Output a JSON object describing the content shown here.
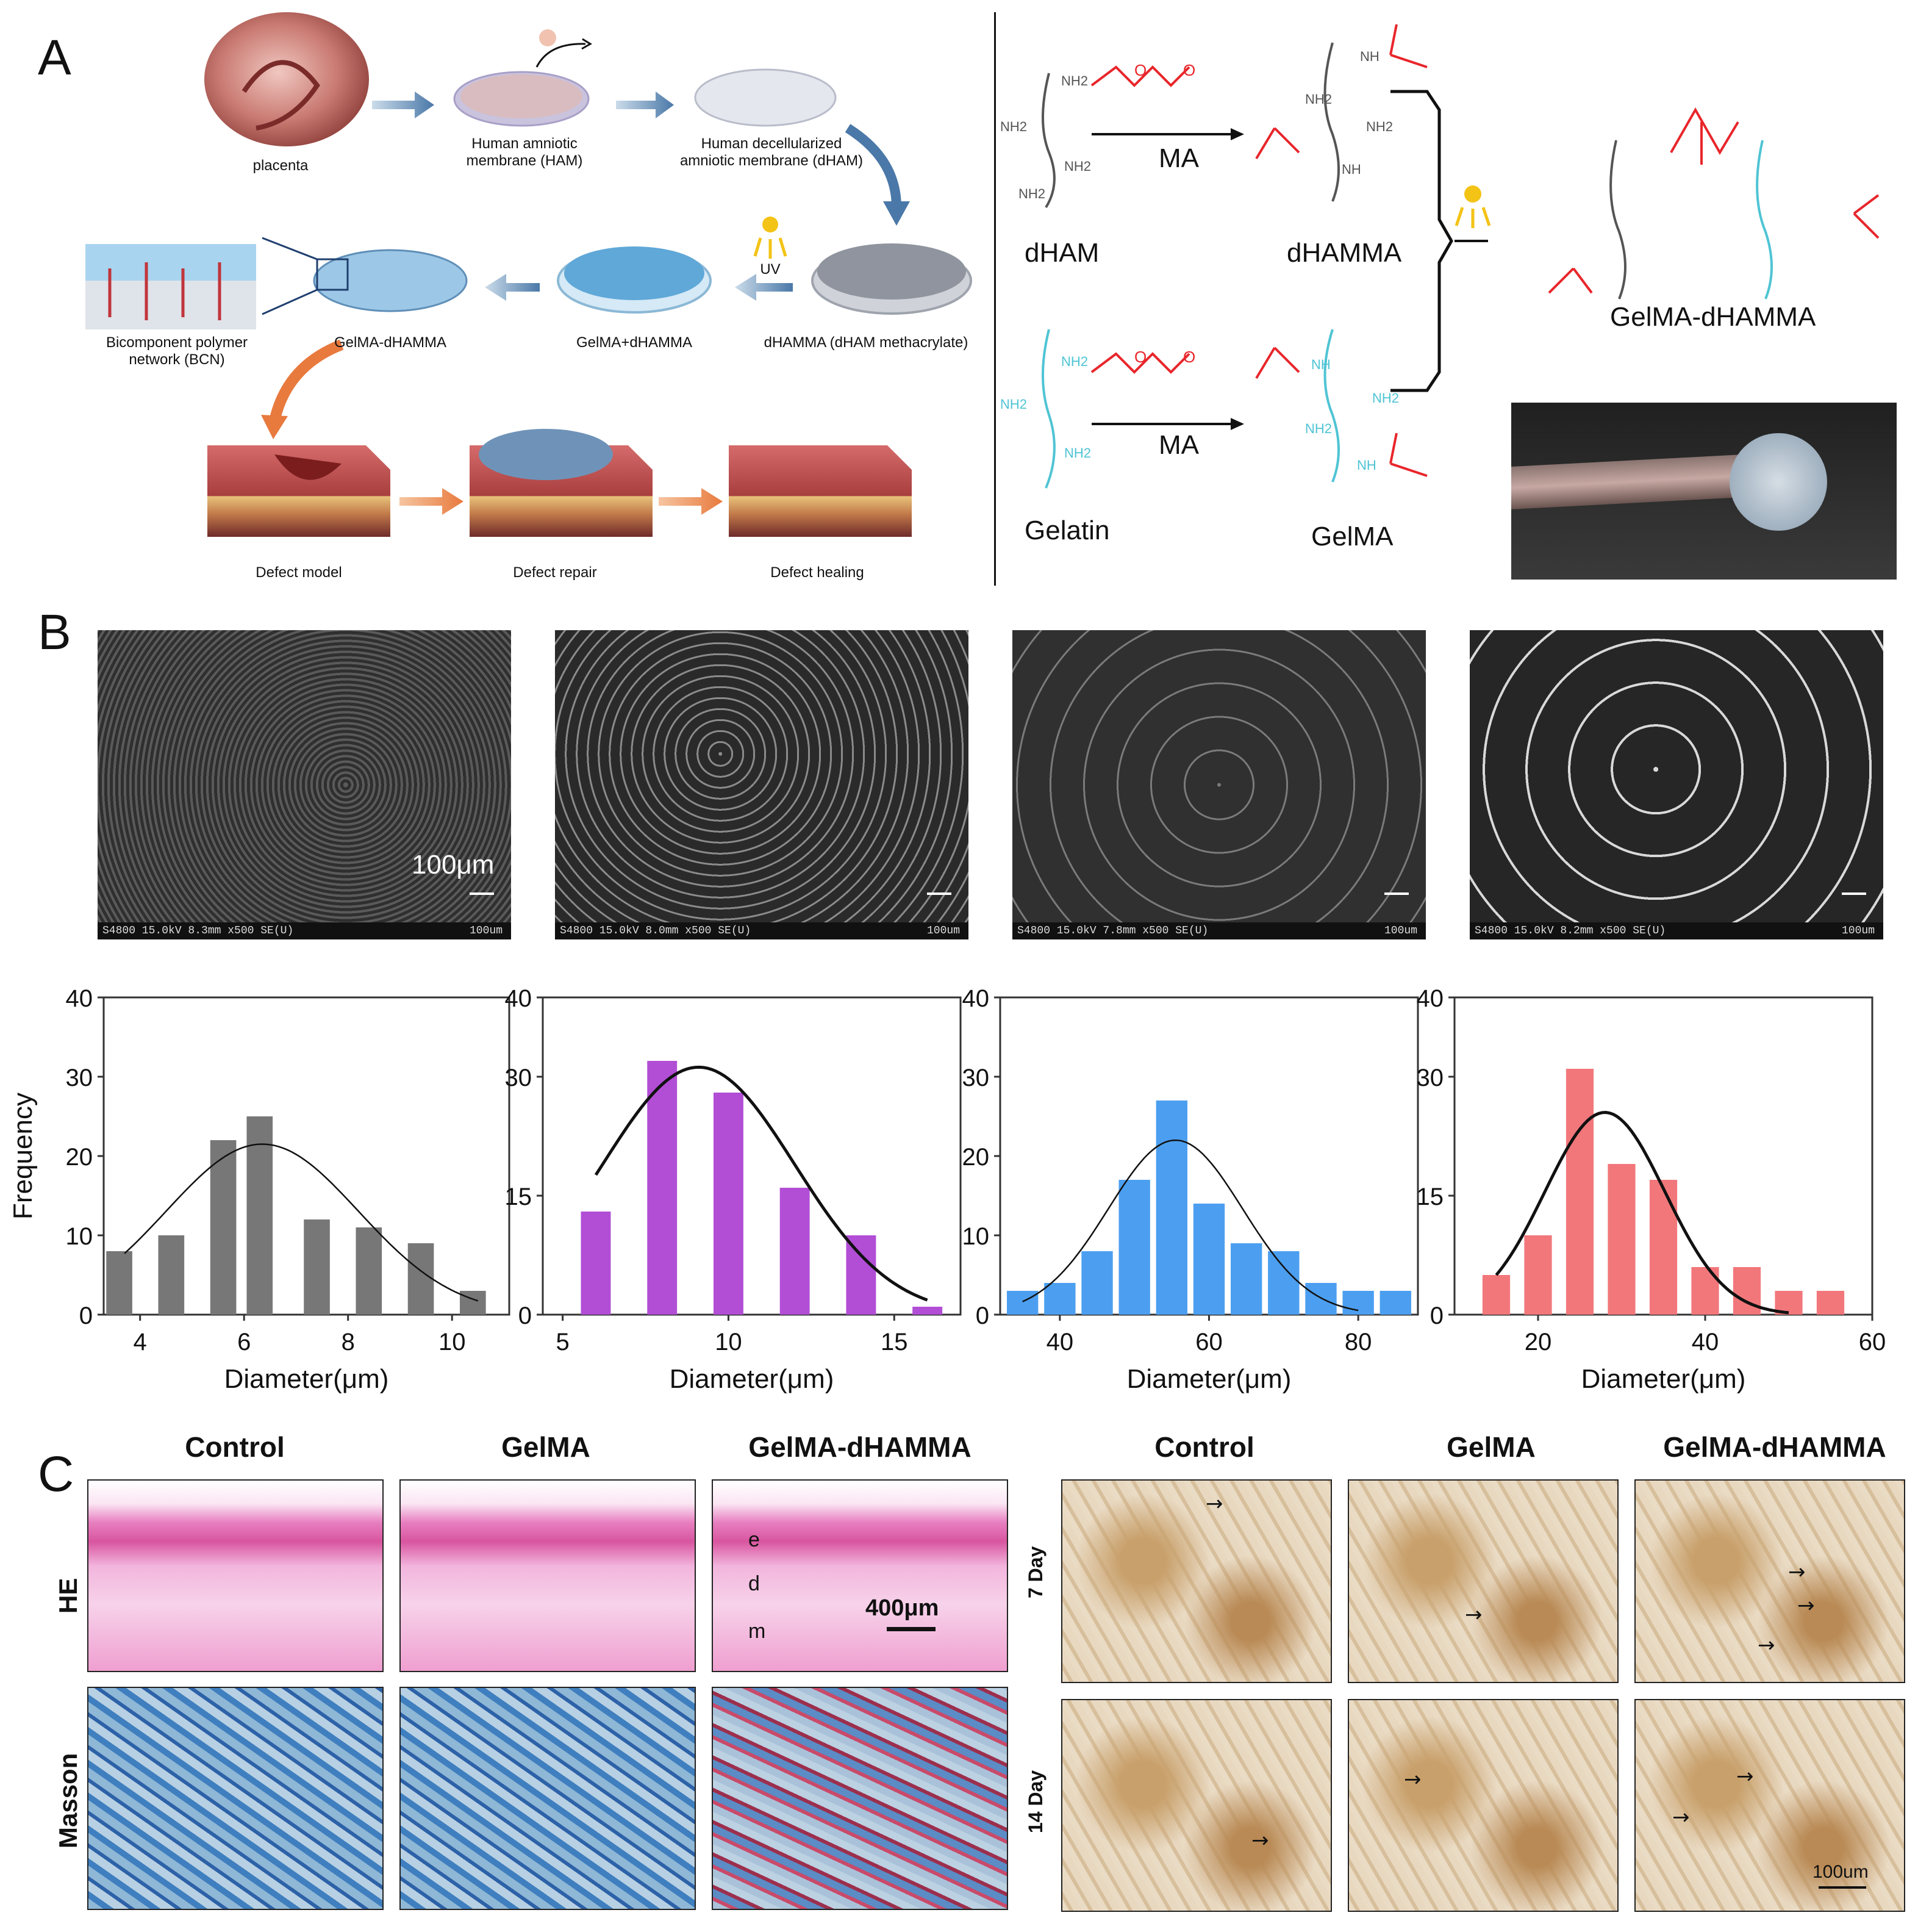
{
  "panels": {
    "a": "A",
    "b": "B",
    "c": "C"
  },
  "panel_a": {
    "workflow_labels": {
      "placenta": "placenta",
      "ham": "Human amniotic membrane (HAM)",
      "dham": "Human decellularized amniotic membrane (dHAM)",
      "uv": "UV",
      "dhamma": "dHAMMA (dHAM methacrylate)",
      "gelma_plus": "GelMA+dHAMMA",
      "gelma_dhamma": "GelMA-dHAMMA",
      "bcn": "Bicomponent polymer network (BCN)",
      "defect_model": "Defect model",
      "defect_repair": "Defect repair",
      "defect_healing": "Defect healing"
    },
    "chemistry": {
      "dham": "dHAM",
      "dhamma": "dHAMMA",
      "gelatin": "Gelatin",
      "gelma": "GelMA",
      "ma_top": "MA",
      "ma_bottom": "MA",
      "product": "GelMA-dHAMMA",
      "nh2": "NH2",
      "nh": "NH",
      "o": "O"
    },
    "colors": {
      "dark": "#555555",
      "red": "#e8262b",
      "cyan": "#4fc4d4"
    }
  },
  "panel_b": {
    "scale_label": "100μm",
    "sem_bars": [
      {
        "left": "S4800 15.0kV 8.3mm x500 SE(U)",
        "right": "100um"
      },
      {
        "left": "S4800 15.0kV 8.0mm x500 SE(U)",
        "right": "100um"
      },
      {
        "left": "S4800 15.0kV 7.8mm x500 SE(U)",
        "right": "100um"
      },
      {
        "left": "S4800 15.0kV 8.2mm x500 SE(U)",
        "right": "100um"
      }
    ]
  },
  "chart_data": [
    {
      "type": "bar",
      "color": "#777777",
      "xlabel": "Diameter(μm)",
      "ylabel": "Frequency",
      "xlim": [
        3.3,
        11.1
      ],
      "xticks": [
        4,
        6,
        8,
        10
      ],
      "ylim": [
        0,
        40
      ],
      "yticks": [
        0,
        10,
        20,
        30,
        40
      ],
      "bin_width": 0.5,
      "x": [
        3.6,
        4.6,
        5.6,
        6.3,
        7.4,
        8.4,
        9.4,
        10.4
      ],
      "values": [
        8,
        10,
        22,
        25,
        12,
        11,
        9,
        3
      ],
      "fit": {
        "mean": 6.35,
        "sd": 1.85,
        "peak": 21.5,
        "range": [
          3.7,
          10.5
        ]
      }
    },
    {
      "type": "bar",
      "color": "#b24ed6",
      "xlabel": "Diameter(μm)",
      "ylabel": "",
      "xlim": [
        4.4,
        17.0
      ],
      "xticks": [
        5,
        10,
        15
      ],
      "ylim": [
        0,
        40
      ],
      "yticks": [
        0,
        15,
        30,
        40
      ],
      "bin_width": 0.9,
      "x": [
        6,
        8,
        10,
        12,
        14,
        16
      ],
      "values": [
        13,
        32,
        28,
        16,
        10,
        1
      ],
      "fit": {
        "mean": 9.1,
        "sd": 2.9,
        "peak": 31.2,
        "range": [
          6,
          16
        ]
      }
    },
    {
      "type": "bar",
      "color": "#4c9ff0",
      "xlabel": "Diameter(μm)",
      "ylabel": "",
      "xlim": [
        32,
        88
      ],
      "xticks": [
        40,
        60,
        80
      ],
      "ylim": [
        0,
        40
      ],
      "yticks": [
        0,
        10,
        20,
        30,
        40
      ],
      "bin_width": 4.2,
      "x": [
        35,
        40,
        45,
        50,
        55,
        60,
        65,
        70,
        75,
        80,
        85
      ],
      "values": [
        3,
        4,
        8,
        17,
        27,
        14,
        9,
        8,
        4,
        3,
        3
      ],
      "fit": {
        "mean": 55.5,
        "sd": 9.0,
        "peak": 22,
        "range": [
          35,
          80
        ]
      }
    },
    {
      "type": "bar",
      "color": "#f2777b",
      "xlabel": "Diameter(μm)",
      "ylabel": "",
      "xlim": [
        10,
        60
      ],
      "xticks": [
        20,
        40,
        60
      ],
      "ylim": [
        0,
        40
      ],
      "yticks": [
        0,
        15,
        30,
        40
      ],
      "bin_width": 3.3,
      "x": [
        15,
        20,
        25,
        30,
        35,
        40,
        45,
        50,
        55
      ],
      "values": [
        5,
        10,
        31,
        19,
        17,
        6,
        6,
        3,
        3
      ],
      "fit": {
        "mean": 28,
        "sd": 7.2,
        "peak": 25.5,
        "range": [
          15,
          50
        ]
      }
    }
  ],
  "panel_c": {
    "left_cols": [
      "Control",
      "GelMA",
      "GelMA-dHAMMA"
    ],
    "right_cols": [
      "Control",
      "GelMA",
      "GelMA-dHAMMA"
    ],
    "left_rows": [
      "HE",
      "Masson"
    ],
    "right_rows": [
      "7 Day",
      "14 Day"
    ],
    "he_layers": [
      "e",
      "d",
      "m"
    ],
    "scale_left": "400μm",
    "scale_right": "100um",
    "arrow": "→"
  }
}
